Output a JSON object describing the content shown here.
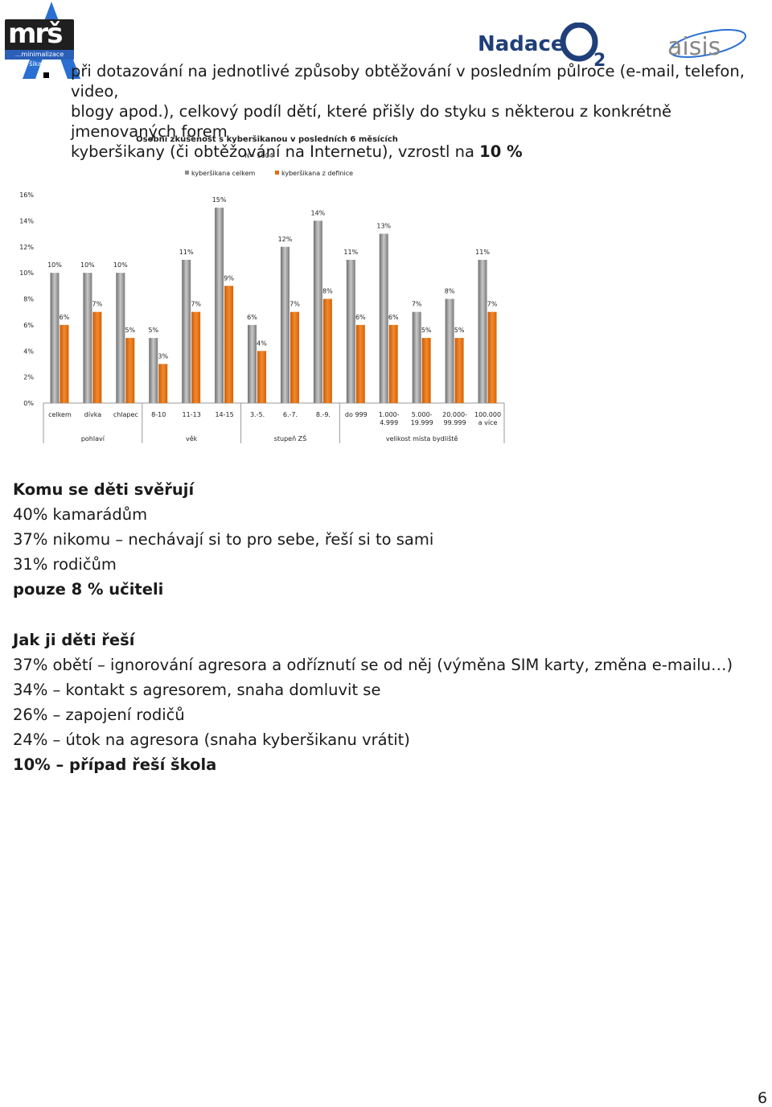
{
  "header": {
    "logo_left_text": "mrš",
    "logo_left_strip": "...minimalizace šikany",
    "sponsor_text": "Nadace",
    "sponsor_mark": "O2",
    "partner_text": "aisis"
  },
  "intro": {
    "line1": "při dotazování  na jednotlivé způsoby obtěžování v posledním půlroce (e-mail, telefon, video,",
    "line2": "blogy apod.), celkový podíl dětí, které přišly do styku s některou z konkrétně jmenovaných forem",
    "line3_prefix": "kyberšikany (či obtěžování na Internetu), vzrostl na ",
    "line3_bold": "10 %"
  },
  "chart_data": {
    "type": "bar",
    "title": "Osobní zkušenost s kyberšikanou v posledních 6 měsících",
    "subtitle": "N= 1004",
    "ylim": [
      0,
      16
    ],
    "yticks": [
      "0%",
      "2%",
      "4%",
      "6%",
      "8%",
      "10%",
      "12%",
      "14%",
      "16%"
    ],
    "legend_position": "top",
    "categories": [
      [
        "celkem"
      ],
      [
        "dívka"
      ],
      [
        "chlapec"
      ],
      [
        "8-10"
      ],
      [
        "11-13"
      ],
      [
        "14-15"
      ],
      [
        "3.-5."
      ],
      [
        "6.-7."
      ],
      [
        "8.-9."
      ],
      [
        "do 999"
      ],
      [
        "1.000-",
        "4.999"
      ],
      [
        "5.000-",
        "19.999"
      ],
      [
        "20.000-",
        "99.999"
      ],
      [
        "100.000",
        "a více"
      ]
    ],
    "groups": [
      {
        "label": "pohlaví",
        "start": 0,
        "end": 2
      },
      {
        "label": "věk",
        "start": 3,
        "end": 5
      },
      {
        "label": "stupeň ZŠ",
        "start": 6,
        "end": 8
      },
      {
        "label": "velikost místa bydliště",
        "start": 9,
        "end": 13
      }
    ],
    "series": [
      {
        "name": "kyberšikana celkem",
        "color": "#8c8c8c",
        "values": [
          10,
          10,
          10,
          5,
          11,
          15,
          6,
          12,
          14,
          11,
          13,
          7,
          8,
          11
        ],
        "labels": [
          "10%",
          "10%",
          "10%",
          "5%",
          "11%",
          "15%",
          "6%",
          "12%",
          "14%",
          "11%",
          "13%",
          "7%",
          "8%",
          "11%"
        ]
      },
      {
        "name": "kyberšikana z definice",
        "color": "#e46c0a",
        "values": [
          6,
          7,
          5,
          3,
          7,
          9,
          4,
          7,
          8,
          6,
          6,
          5,
          5,
          7
        ],
        "labels": [
          "6%",
          "7%",
          "5%",
          "3%",
          "7%",
          "9%",
          "4%",
          "7%",
          "8%",
          "6%",
          "6%",
          "5%",
          "5%",
          "7%"
        ]
      }
    ]
  },
  "confide": {
    "heading": "Komu se děti svěřují",
    "items": [
      "40% kamarádům",
      "37% nikomu – nechávají si to pro sebe, řeší si to sami",
      "31% rodičům"
    ],
    "last_bold": "pouze 8 %  učiteli"
  },
  "solve": {
    "heading": "Jak ji děti řeší",
    "items": [
      "37% obětí – ignorování agresora a odříznutí se od něj (výměna SIM karty, změna e-mailu…)",
      "34% – kontakt s agresorem, snaha domluvit se",
      "26% – zapojení rodičů",
      "24% – útok na agresora (snaha kyberšikanu vrátit)"
    ],
    "last_bold": "10%  –  případ řeší škola"
  },
  "page_number": "6"
}
